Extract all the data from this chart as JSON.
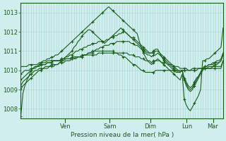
{
  "background_color": "#d0eeee",
  "grid_color": "#b0d8d8",
  "line_color": "#1a5c1a",
  "marker_color": "#1a5c1a",
  "ylabel": "Pression niveau de la mer( hPa )",
  "ylim": [
    1007.5,
    1013.5
  ],
  "yticks": [
    1008,
    1009,
    1010,
    1011,
    1012,
    1013
  ],
  "day_labels": [
    "Ven",
    "Sam",
    "Dim",
    "Lun",
    "Mar"
  ],
  "day_positions": [
    0.22,
    0.44,
    0.64,
    0.82,
    0.95
  ],
  "n_points": 100,
  "series": [
    [
      1007.6,
      1008.8,
      1009.2,
      1009.5,
      1009.7,
      1010.0,
      1010.1,
      1010.2,
      1010.2,
      1010.3,
      1010.4,
      1010.5,
      1010.5,
      1010.6,
      1010.6,
      1010.7,
      1010.7,
      1010.8,
      1010.8,
      1010.9,
      1011.0,
      1011.1,
      1011.2,
      1011.3,
      1011.4,
      1011.5,
      1011.6,
      1011.7,
      1011.8,
      1011.9,
      1012.0,
      1012.1,
      1012.2,
      1012.3,
      1012.4,
      1012.5,
      1012.6,
      1012.7,
      1012.8,
      1012.9,
      1013.0,
      1013.1,
      1013.2,
      1013.3,
      1013.2,
      1013.1,
      1013.0,
      1012.9,
      1012.8,
      1012.7,
      1012.6,
      1012.5,
      1012.4,
      1012.3,
      1012.2,
      1012.1,
      1012.0,
      1011.9,
      1011.5,
      1011.2,
      1010.9,
      1010.7,
      1010.5,
      1010.4,
      1010.3,
      1010.4,
      1010.5,
      1010.6,
      1010.5,
      1010.4,
      1010.3,
      1010.2,
      1010.1,
      1010.0,
      1009.9,
      1009.8,
      1009.7,
      1009.6,
      1009.5,
      1009.8,
      1008.5,
      1008.2,
      1008.0,
      1007.9,
      1008.1,
      1008.3,
      1008.5,
      1008.7,
      1009.0,
      1010.5,
      1010.5,
      1010.6,
      1010.6,
      1010.7,
      1010.8,
      1010.9,
      1011.0,
      1011.1,
      1011.2,
      1012.2
    ],
    [
      1009.5,
      1009.6,
      1009.7,
      1009.8,
      1009.9,
      1010.0,
      1010.1,
      1010.2,
      1010.2,
      1010.3,
      1010.3,
      1010.3,
      1010.3,
      1010.4,
      1010.4,
      1010.4,
      1010.5,
      1010.5,
      1010.5,
      1010.5,
      1010.5,
      1010.5,
      1010.6,
      1010.6,
      1010.6,
      1010.6,
      1010.6,
      1010.7,
      1010.7,
      1010.7,
      1010.8,
      1010.8,
      1010.8,
      1010.9,
      1010.9,
      1010.9,
      1011.0,
      1011.0,
      1011.0,
      1011.0,
      1011.0,
      1011.0,
      1011.0,
      1011.0,
      1011.0,
      1011.0,
      1010.9,
      1010.9,
      1010.8,
      1010.8,
      1010.7,
      1010.7,
      1010.6,
      1010.5,
      1010.4,
      1010.3,
      1010.3,
      1010.2,
      1010.1,
      1010.0,
      1010.0,
      1009.9,
      1009.9,
      1009.9,
      1009.9,
      1009.9,
      1010.0,
      1010.0,
      1010.0,
      1010.0,
      1010.0,
      1010.0,
      1010.0,
      1010.0,
      1010.0,
      1010.0,
      1010.0,
      1010.0,
      1010.0,
      1010.0,
      1010.0,
      1010.0,
      1010.0,
      1010.0,
      1010.1,
      1010.1,
      1010.1,
      1010.1,
      1010.1,
      1010.1,
      1010.1,
      1010.1,
      1010.1,
      1010.1,
      1010.1,
      1010.1,
      1010.1,
      1010.1,
      1010.1,
      1010.5
    ],
    [
      1009.0,
      1009.2,
      1009.3,
      1009.4,
      1009.5,
      1009.6,
      1009.7,
      1009.8,
      1009.9,
      1010.0,
      1010.0,
      1010.1,
      1010.1,
      1010.1,
      1010.2,
      1010.2,
      1010.2,
      1010.3,
      1010.3,
      1010.4,
      1010.5,
      1010.6,
      1010.7,
      1010.8,
      1010.9,
      1011.0,
      1011.2,
      1011.3,
      1011.5,
      1011.6,
      1011.8,
      1011.9,
      1012.0,
      1012.1,
      1012.1,
      1012.0,
      1011.9,
      1011.8,
      1011.7,
      1011.6,
      1011.5,
      1011.4,
      1011.5,
      1011.6,
      1011.7,
      1011.8,
      1011.9,
      1012.0,
      1012.1,
      1012.2,
      1012.1,
      1012.0,
      1011.9,
      1011.8,
      1011.7,
      1011.6,
      1011.5,
      1011.4,
      1011.3,
      1011.2,
      1011.1,
      1011.0,
      1010.9,
      1010.9,
      1010.9,
      1011.0,
      1011.1,
      1011.1,
      1010.9,
      1010.7,
      1010.5,
      1010.4,
      1010.3,
      1010.2,
      1010.1,
      1010.0,
      1009.9,
      1009.9,
      1009.9,
      1010.0,
      1009.5,
      1009.2,
      1009.0,
      1008.9,
      1009.0,
      1009.2,
      1009.4,
      1009.6,
      1009.8,
      1010.0,
      1010.1,
      1010.1,
      1010.2,
      1010.2,
      1010.2,
      1010.3,
      1010.3,
      1010.4,
      1010.5,
      1010.9
    ],
    [
      1009.2,
      1009.4,
      1009.5,
      1009.6,
      1009.7,
      1009.8,
      1009.9,
      1010.0,
      1010.0,
      1010.1,
      1010.1,
      1010.1,
      1010.2,
      1010.2,
      1010.2,
      1010.3,
      1010.3,
      1010.3,
      1010.3,
      1010.4,
      1010.4,
      1010.4,
      1010.5,
      1010.5,
      1010.5,
      1010.6,
      1010.6,
      1010.6,
      1010.7,
      1010.7,
      1010.7,
      1010.8,
      1010.8,
      1010.9,
      1010.9,
      1011.0,
      1011.0,
      1011.1,
      1011.1,
      1011.2,
      1011.2,
      1011.3,
      1011.3,
      1011.3,
      1011.4,
      1011.4,
      1011.4,
      1011.5,
      1011.5,
      1011.5,
      1011.5,
      1011.5,
      1011.5,
      1011.5,
      1011.4,
      1011.4,
      1011.3,
      1011.3,
      1011.2,
      1011.1,
      1011.0,
      1010.9,
      1010.8,
      1010.8,
      1010.7,
      1010.8,
      1010.8,
      1010.9,
      1010.8,
      1010.7,
      1010.6,
      1010.5,
      1010.4,
      1010.3,
      1010.2,
      1010.1,
      1010.0,
      1009.9,
      1009.9,
      1010.0,
      1009.5,
      1009.3,
      1009.1,
      1009.0,
      1009.1,
      1009.3,
      1009.5,
      1009.7,
      1009.9,
      1010.1,
      1010.2,
      1010.2,
      1010.3,
      1010.3,
      1010.3,
      1010.4,
      1010.4,
      1010.4,
      1010.5,
      1010.8
    ],
    [
      1009.8,
      1009.9,
      1010.0,
      1010.0,
      1010.0,
      1010.1,
      1010.1,
      1010.1,
      1010.2,
      1010.2,
      1010.3,
      1010.3,
      1010.3,
      1010.4,
      1010.4,
      1010.4,
      1010.5,
      1010.5,
      1010.5,
      1010.5,
      1010.6,
      1010.6,
      1010.7,
      1010.7,
      1010.8,
      1010.8,
      1010.9,
      1011.0,
      1011.0,
      1011.1,
      1011.1,
      1011.2,
      1011.2,
      1011.3,
      1011.3,
      1011.4,
      1011.4,
      1011.4,
      1011.5,
      1011.5,
      1011.5,
      1011.5,
      1011.6,
      1011.6,
      1011.7,
      1011.7,
      1011.8,
      1011.8,
      1011.9,
      1011.9,
      1012.0,
      1012.0,
      1011.9,
      1011.8,
      1011.7,
      1011.7,
      1011.6,
      1011.5,
      1011.4,
      1011.3,
      1011.2,
      1011.1,
      1011.0,
      1010.9,
      1010.9,
      1010.9,
      1011.0,
      1011.0,
      1010.9,
      1010.8,
      1010.7,
      1010.6,
      1010.5,
      1010.4,
      1010.3,
      1010.2,
      1010.1,
      1010.0,
      1009.9,
      1010.0,
      1009.6,
      1009.4,
      1009.2,
      1009.1,
      1009.2,
      1009.4,
      1009.6,
      1009.7,
      1009.9,
      1010.1,
      1010.2,
      1010.2,
      1010.3,
      1010.3,
      1010.4,
      1010.4,
      1010.5,
      1010.5,
      1010.6,
      1010.9
    ],
    [
      1010.2,
      1010.2,
      1010.2,
      1010.2,
      1010.3,
      1010.3,
      1010.3,
      1010.3,
      1010.3,
      1010.4,
      1010.4,
      1010.4,
      1010.4,
      1010.5,
      1010.5,
      1010.5,
      1010.5,
      1010.5,
      1010.5,
      1010.5,
      1010.6,
      1010.6,
      1010.6,
      1010.6,
      1010.6,
      1010.7,
      1010.7,
      1010.7,
      1010.7,
      1010.7,
      1010.7,
      1010.8,
      1010.8,
      1010.8,
      1010.8,
      1010.8,
      1010.8,
      1010.8,
      1010.9,
      1010.9,
      1010.9,
      1010.9,
      1010.9,
      1010.9,
      1010.9,
      1010.9,
      1010.9,
      1010.9,
      1010.9,
      1010.9,
      1010.9,
      1010.9,
      1010.9,
      1010.8,
      1010.8,
      1010.8,
      1010.7,
      1010.7,
      1010.7,
      1010.6,
      1010.6,
      1010.5,
      1010.5,
      1010.5,
      1010.4,
      1010.5,
      1010.5,
      1010.5,
      1010.5,
      1010.4,
      1010.4,
      1010.4,
      1010.3,
      1010.3,
      1010.3,
      1010.2,
      1010.2,
      1010.2,
      1010.1,
      1010.1,
      1010.1,
      1010.1,
      1010.0,
      1010.0,
      1010.0,
      1010.0,
      1010.0,
      1010.1,
      1010.1,
      1010.1,
      1010.1,
      1010.1,
      1010.1,
      1010.1,
      1010.2,
      1010.2,
      1010.2,
      1010.2,
      1010.2,
      1010.5
    ]
  ]
}
